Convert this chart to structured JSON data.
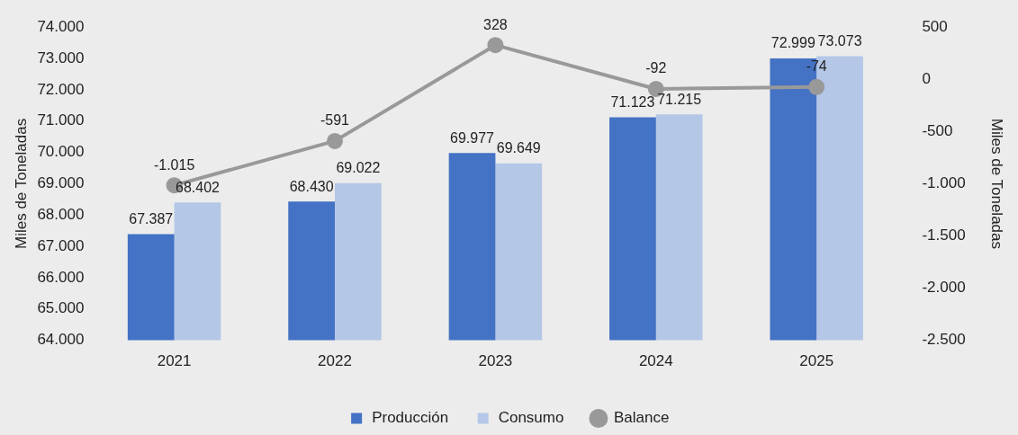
{
  "chart_data": {
    "type": "bar",
    "categories": [
      "2021",
      "2022",
      "2023",
      "2024",
      "2025"
    ],
    "series": [
      {
        "name": "Producción",
        "color": "#4472c4",
        "values": [
          67387,
          68430,
          69977,
          71123,
          72999
        ],
        "value_labels": [
          "67.387",
          "68.430",
          "69.977",
          "71.123",
          "72.999"
        ]
      },
      {
        "name": "Consumo",
        "color": "#b4c7e7",
        "values": [
          68402,
          69022,
          69649,
          71215,
          73073
        ],
        "value_labels": [
          "68.402",
          "69.022",
          "69.649",
          "71.215",
          "73.073"
        ]
      },
      {
        "name": "Balance",
        "type": "line",
        "axis": "y2",
        "color": "#999999",
        "values": [
          -1015,
          -591,
          328,
          -92,
          -74
        ],
        "value_labels": [
          "-1.015",
          "-591",
          "328",
          "-92",
          "-74"
        ]
      }
    ],
    "ylabel": "Miles de Toneladas",
    "y2label": "Miles de Toneladas",
    "ylim": [
      64000,
      74000
    ],
    "yticks": [
      {
        "value": 64000,
        "label": "64.000"
      },
      {
        "value": 65000,
        "label": "65.000"
      },
      {
        "value": 66000,
        "label": "66.000"
      },
      {
        "value": 67000,
        "label": "67.000"
      },
      {
        "value": 68000,
        "label": "68.000"
      },
      {
        "value": 69000,
        "label": "69.000"
      },
      {
        "value": 70000,
        "label": "70.000"
      },
      {
        "value": 71000,
        "label": "71.000"
      },
      {
        "value": 72000,
        "label": "72.000"
      },
      {
        "value": 73000,
        "label": "73.000"
      },
      {
        "value": 74000,
        "label": "74.000"
      }
    ],
    "y2lim": [
      -2500,
      500
    ],
    "y2ticks": [
      {
        "value": -2500,
        "label": "-2.500"
      },
      {
        "value": -2000,
        "label": "-2.000"
      },
      {
        "value": -1500,
        "label": "-1.500"
      },
      {
        "value": -1000,
        "label": "-1.000"
      },
      -500,
      0,
      500
    ],
    "grid": false,
    "legend": "bottom",
    "marker": "circle",
    "line_style": "solid"
  }
}
